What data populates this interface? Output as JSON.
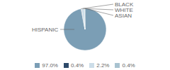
{
  "chart_data": {
    "type": "pie",
    "categories": [
      "HISPANIC",
      "BLACK",
      "WHITE",
      "ASIAN"
    ],
    "values": [
      97.0,
      0.4,
      2.2,
      0.4
    ],
    "value_labels": [
      "97.0%",
      "0.4%",
      "2.2%",
      "0.4%"
    ],
    "colors": [
      "#7b9eb5",
      "#2d4a6a",
      "#ccdde8",
      "#a8c2d0"
    ],
    "legend": "bottom"
  }
}
